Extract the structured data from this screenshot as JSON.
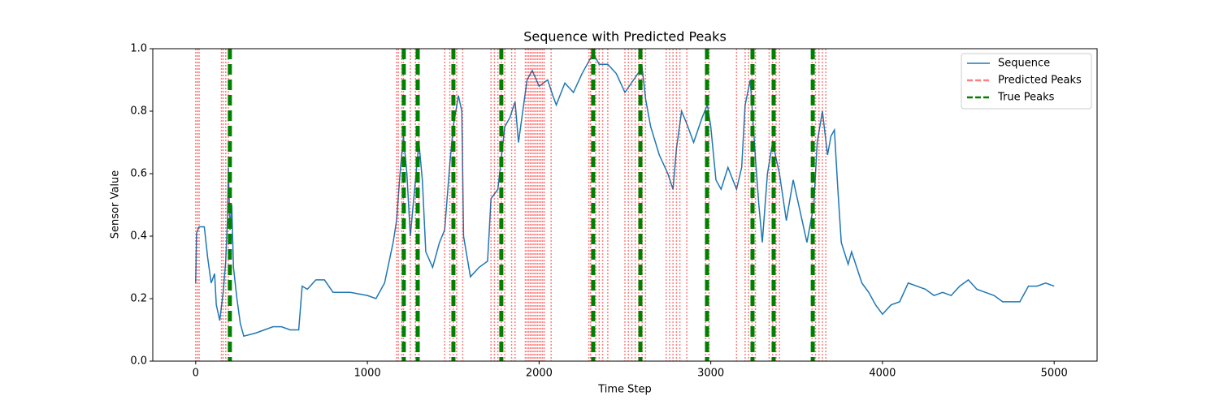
{
  "chart_data": {
    "type": "line",
    "title": "Sequence with Predicted Peaks",
    "x_label": "Time Step",
    "y_label": "Sensor Value",
    "x": [
      0,
      5,
      20,
      50,
      70,
      90,
      110,
      120,
      140,
      160,
      175,
      185,
      190,
      200,
      210,
      220,
      240,
      260,
      280,
      350,
      400,
      450,
      500,
      550,
      600,
      620,
      650,
      700,
      750,
      800,
      900,
      1000,
      1050,
      1100,
      1150,
      1170,
      1190,
      1210,
      1230,
      1250,
      1280,
      1300,
      1320,
      1340,
      1380,
      1420,
      1450,
      1480,
      1500,
      1530,
      1550,
      1560,
      1600,
      1650,
      1700,
      1720,
      1760,
      1800,
      1830,
      1860,
      1880,
      1900,
      1930,
      1960,
      2000,
      2050,
      2080,
      2100,
      2150,
      2200,
      2250,
      2300,
      2320,
      2350,
      2400,
      2450,
      2500,
      2550,
      2600,
      2620,
      2650,
      2700,
      2750,
      2780,
      2800,
      2830,
      2860,
      2900,
      2950,
      2980,
      3000,
      3030,
      3060,
      3100,
      3150,
      3180,
      3200,
      3230,
      3260,
      3280,
      3300,
      3330,
      3360,
      3400,
      3440,
      3480,
      3520,
      3560,
      3600,
      3620,
      3650,
      3680,
      3700,
      3720,
      3740,
      3760,
      3800,
      3820,
      3850,
      3880,
      3920,
      3960,
      4000,
      4050,
      4100,
      4150,
      4200,
      4250,
      4300,
      4350,
      4400,
      4450,
      4500,
      4550,
      4600,
      4650,
      4700,
      4800,
      4850,
      4900,
      4950,
      5000
    ],
    "series": [
      {
        "name": "Sequence",
        "color": "#1f77b4",
        "values": [
          0.25,
          0.41,
          0.43,
          0.43,
          0.33,
          0.25,
          0.28,
          0.18,
          0.13,
          0.22,
          0.32,
          0.45,
          0.62,
          0.42,
          0.5,
          0.3,
          0.2,
          0.12,
          0.08,
          0.09,
          0.1,
          0.11,
          0.11,
          0.1,
          0.1,
          0.24,
          0.23,
          0.26,
          0.26,
          0.22,
          0.22,
          0.21,
          0.2,
          0.25,
          0.38,
          0.45,
          0.6,
          0.72,
          0.6,
          0.4,
          0.58,
          0.7,
          0.58,
          0.35,
          0.3,
          0.38,
          0.42,
          0.63,
          0.75,
          0.85,
          0.8,
          0.4,
          0.27,
          0.3,
          0.32,
          0.52,
          0.55,
          0.75,
          0.78,
          0.83,
          0.7,
          0.78,
          0.9,
          0.93,
          0.88,
          0.9,
          0.85,
          0.82,
          0.89,
          0.86,
          0.92,
          0.97,
          0.98,
          0.95,
          0.95,
          0.92,
          0.86,
          0.9,
          0.94,
          0.84,
          0.75,
          0.66,
          0.6,
          0.55,
          0.68,
          0.8,
          0.76,
          0.7,
          0.78,
          0.82,
          0.75,
          0.58,
          0.55,
          0.62,
          0.55,
          0.62,
          0.82,
          0.9,
          0.65,
          0.5,
          0.38,
          0.6,
          0.7,
          0.6,
          0.45,
          0.58,
          0.48,
          0.38,
          0.5,
          0.7,
          0.8,
          0.66,
          0.72,
          0.74,
          0.55,
          0.38,
          0.31,
          0.35,
          0.3,
          0.25,
          0.22,
          0.18,
          0.15,
          0.18,
          0.19,
          0.25,
          0.24,
          0.23,
          0.21,
          0.22,
          0.21,
          0.24,
          0.26,
          0.23,
          0.22,
          0.21,
          0.19,
          0.19,
          0.24,
          0.24,
          0.25,
          0.24
        ]
      },
      {
        "name": "Predicted Peaks",
        "color": "#ff0000",
        "style": "vline",
        "x": [
          0,
          10,
          20,
          150,
          160,
          175,
          190,
          1170,
          1180,
          1200,
          1210,
          1250,
          1280,
          1300,
          1450,
          1480,
          1500,
          1520,
          1555,
          1720,
          1740,
          1760,
          1780,
          1800,
          1840,
          1860,
          1920,
          1930,
          1940,
          1950,
          1960,
          1970,
          1980,
          1990,
          2000,
          2010,
          2020,
          2030,
          2070,
          2290,
          2300,
          2330,
          2350,
          2370,
          2400,
          2500,
          2520,
          2540,
          2560,
          2580,
          2600,
          2620,
          2740,
          2760,
          2780,
          2800,
          2820,
          2860,
          2970,
          2990,
          3150,
          3200,
          3220,
          3240,
          3260,
          3340,
          3360,
          3380,
          3400,
          3590,
          3610,
          3630,
          3650,
          3670
        ]
      },
      {
        "name": "True Peaks",
        "color": "#008000",
        "style": "vline",
        "x": [
          199,
          1212,
          1293,
          1501,
          1780,
          2315,
          2590,
          2978,
          3243,
          3366,
          3594
        ]
      }
    ],
    "xlim": [
      -250,
      5250
    ],
    "xticks": [
      0,
      1000,
      2000,
      3000,
      4000,
      5000
    ],
    "ylim": [
      0,
      1
    ],
    "yticks": [
      {
        "value": 0,
        "label": "0.0"
      },
      0.2,
      0.4,
      0.6,
      0.8,
      {
        "value": 1,
        "label": "1.0"
      }
    ],
    "legend": "upper right"
  }
}
